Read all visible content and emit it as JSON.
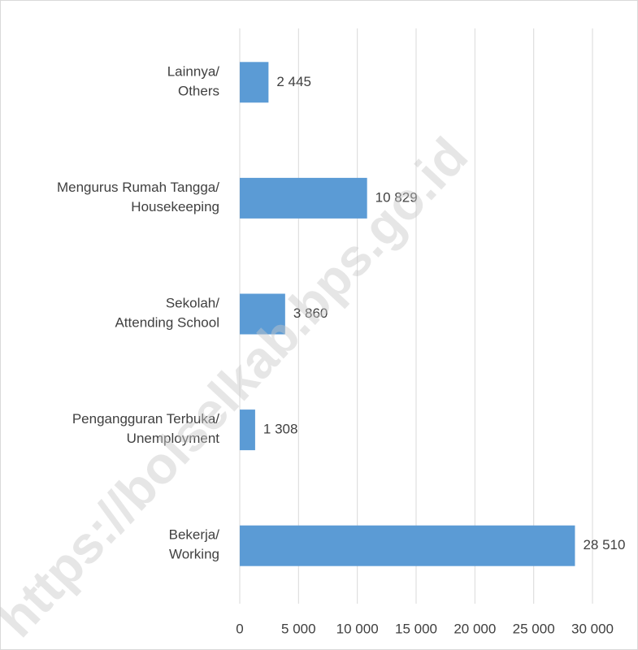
{
  "chart_data": {
    "type": "bar",
    "orientation": "horizontal",
    "categories": [
      "Bekerja/\nWorking",
      "Pengangguran Terbuka/\nUnemployment",
      "Sekolah/\nAttending School",
      "Mengurus Rumah Tangga/\nHousekeeping",
      "Lainnya/\nOthers"
    ],
    "values": [
      28510,
      1308,
      3860,
      10829,
      2445
    ],
    "value_labels": [
      "28 510",
      "1 308",
      "3 860",
      "10 829",
      "2 445"
    ],
    "color": "#5b9bd5",
    "xlim": [
      0,
      30000
    ],
    "xticks": [
      0,
      {
        "value": 5000,
        "label": "5 000"
      },
      {
        "value": 10000,
        "label": "10 000"
      },
      {
        "value": 15000,
        "label": "15 000"
      },
      {
        "value": 20000,
        "label": "20 000"
      },
      {
        "value": 25000,
        "label": "25 000"
      },
      {
        "value": 30000,
        "label": "30 000"
      }
    ],
    "grid": true,
    "watermark": "https://bolselkab.bps.go.id"
  }
}
